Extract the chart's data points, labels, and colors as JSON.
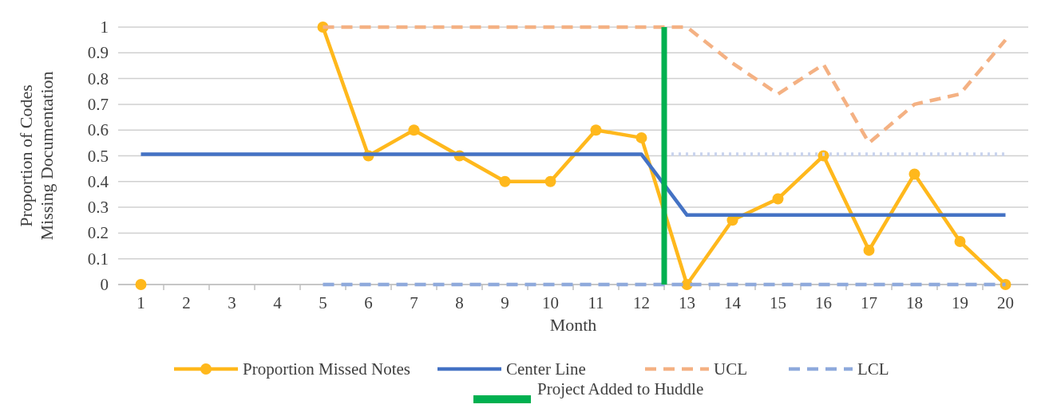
{
  "chart_data": {
    "type": "line",
    "xlabel": "Month",
    "ylabel": "Proportion of Codes Missing Documentation",
    "x": [
      1,
      2,
      3,
      4,
      5,
      6,
      7,
      8,
      9,
      10,
      11,
      12,
      13,
      14,
      15,
      16,
      17,
      18,
      19,
      20
    ],
    "xlim": [
      0.5,
      20.5
    ],
    "xticks": [
      1,
      2,
      3,
      4,
      5,
      6,
      7,
      8,
      9,
      10,
      11,
      12,
      13,
      14,
      15,
      16,
      17,
      18,
      19,
      20
    ],
    "ylim": [
      0,
      1
    ],
    "yticks": [
      0,
      0.1,
      0.2,
      0.3,
      0.4,
      0.5,
      0.6,
      0.7,
      0.8,
      0.9,
      1
    ],
    "grid": "y",
    "legend": "bottom",
    "series": [
      {
        "name": "Proportion Missed Notes",
        "color": "#ffb81c",
        "marker": "circle",
        "line_style": "solid",
        "values": [
          0,
          null,
          null,
          null,
          1,
          0.5,
          0.6,
          0.5,
          0.4,
          0.4,
          0.6,
          0.57,
          0,
          0.25,
          0.333,
          0.5,
          0.133,
          0.429,
          0.167,
          0
        ]
      },
      {
        "name": "Center Line",
        "color": "#4472c4",
        "marker": "none",
        "line_style": "solid",
        "values": [
          0.506,
          0.506,
          0.506,
          0.506,
          0.506,
          0.506,
          0.506,
          0.506,
          0.506,
          0.506,
          0.506,
          0.506,
          0.27,
          0.27,
          0.27,
          0.27,
          0.27,
          0.27,
          0.27,
          0.27
        ]
      },
      {
        "name": "UCL",
        "color": "#f4b183",
        "marker": "none",
        "line_style": "dashed",
        "values": [
          null,
          null,
          null,
          null,
          1,
          1,
          1,
          1,
          1,
          1,
          1,
          1,
          1,
          0.86,
          0.74,
          0.855,
          0.55,
          0.7,
          0.74,
          0.95
        ]
      },
      {
        "name": "LCL",
        "color": "#8faadc",
        "marker": "none",
        "line_style": "dashed",
        "values": [
          null,
          null,
          null,
          null,
          0,
          0,
          0,
          0,
          0,
          0,
          0,
          0,
          0,
          0,
          0,
          0,
          0,
          0,
          0,
          0
        ]
      },
      {
        "color": "#c9d3ee",
        "marker": "none",
        "line_style": "dotted",
        "x": [
          12.5,
          20
        ],
        "values": [
          0.506,
          0.506
        ]
      }
    ],
    "ref_lines": [
      {
        "axis": "x",
        "value": 12.5,
        "label": "Project Added to Huddle",
        "color": "#00b050"
      }
    ]
  }
}
